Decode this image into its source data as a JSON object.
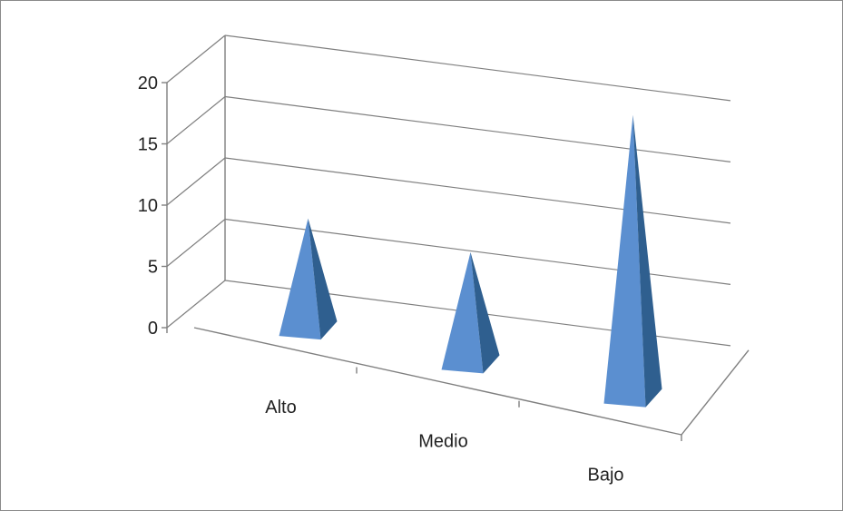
{
  "chart_data": {
    "type": "bar",
    "subtype": "3d-pyramid",
    "categories": [
      "Alto",
      "Medio",
      "Bajo"
    ],
    "values": [
      6,
      6,
      15
    ],
    "ylim": [
      0,
      20
    ],
    "yticks": [
      "0",
      "5",
      "10",
      "15",
      "20"
    ],
    "grid": true,
    "legend": "none",
    "title": "",
    "xlabel": "",
    "ylabel": "",
    "colors": {
      "pyramid_front": "#5b8fd0",
      "pyramid_side": "#2f5f8f",
      "grid": "#7f7f7f",
      "border": "#8a8a8a"
    }
  }
}
